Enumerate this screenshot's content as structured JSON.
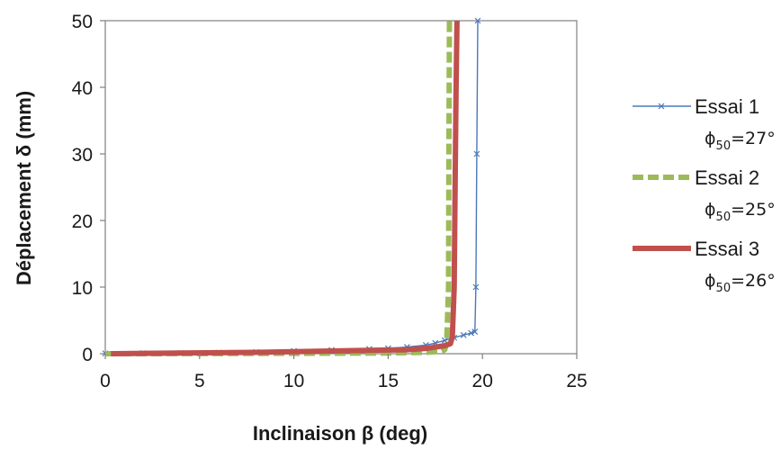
{
  "chart_data": {
    "type": "line",
    "title": "",
    "xlabel": "Inclinaison β (deg)",
    "ylabel": "Déplacement δ (mm)",
    "xlim": [
      0,
      25
    ],
    "ylim": [
      0,
      50
    ],
    "xticks": [
      "0",
      "5",
      "10",
      "15",
      "20",
      "25"
    ],
    "yticks": [
      "0",
      "10",
      "20",
      "30",
      "40",
      "50"
    ],
    "grid": false,
    "legend_position": "right",
    "series": [
      {
        "name": "Essai 1",
        "note_symbol": "ϕ",
        "note_sub": "50",
        "note_value": "=27°",
        "color": "#4a78b8",
        "style": "thin-line-x-markers",
        "x": [
          0,
          2,
          4,
          6,
          8,
          10,
          12,
          14,
          15,
          16,
          17,
          17.5,
          18,
          18.5,
          19,
          19.4,
          19.6,
          19.65,
          19.7,
          19.75
        ],
        "y": [
          0.05,
          0.08,
          0.1,
          0.15,
          0.25,
          0.4,
          0.55,
          0.7,
          0.8,
          1.0,
          1.3,
          1.6,
          2.0,
          2.4,
          2.8,
          3.1,
          3.3,
          10,
          30,
          50
        ]
      },
      {
        "name": "Essai 2",
        "note_symbol": "ϕ",
        "note_sub": "50",
        "note_value": "=25°",
        "color": "#9bbb59",
        "style": "thick-dashed",
        "x": [
          0,
          5,
          10,
          15,
          17,
          17.8,
          18.0,
          18.1,
          18.2,
          18.22,
          18.25
        ],
        "y": [
          0,
          0.02,
          0.05,
          0.1,
          0.2,
          0.35,
          0.6,
          1.5,
          10,
          30,
          50
        ]
      },
      {
        "name": "Essai 3",
        "note_symbol": "ϕ",
        "note_sub": "50",
        "note_value": "=26°",
        "color": "#c0504d",
        "style": "thick-solid",
        "x": [
          0.3,
          2,
          4,
          6,
          8,
          10,
          12,
          14,
          15,
          16,
          17,
          17.5,
          18,
          18.3,
          18.4,
          18.5,
          18.55,
          18.6,
          18.65
        ],
        "y": [
          0,
          0.05,
          0.1,
          0.15,
          0.2,
          0.3,
          0.4,
          0.5,
          0.55,
          0.6,
          0.8,
          1.0,
          1.2,
          1.5,
          2.5,
          10,
          25,
          40,
          50
        ]
      }
    ]
  }
}
